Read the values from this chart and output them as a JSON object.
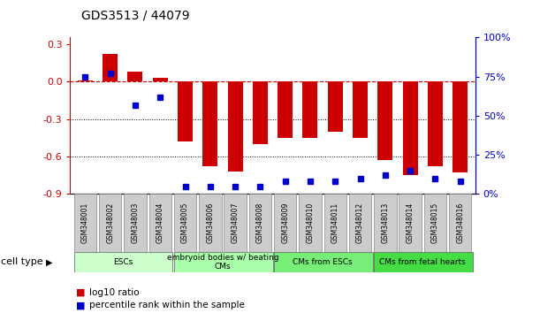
{
  "title": "GDS3513 / 44079",
  "samples": [
    "GSM348001",
    "GSM348002",
    "GSM348003",
    "GSM348004",
    "GSM348005",
    "GSM348006",
    "GSM348007",
    "GSM348008",
    "GSM348009",
    "GSM348010",
    "GSM348011",
    "GSM348012",
    "GSM348013",
    "GSM348014",
    "GSM348015",
    "GSM348016"
  ],
  "log10_ratio": [
    0.01,
    0.22,
    0.08,
    0.03,
    -0.48,
    -0.68,
    -0.72,
    -0.5,
    -0.45,
    -0.45,
    -0.4,
    -0.45,
    -0.63,
    -0.75,
    -0.68,
    -0.73
  ],
  "percentile_rank": [
    75,
    77,
    57,
    62,
    5,
    5,
    5,
    5,
    8,
    8,
    8,
    10,
    12,
    15,
    10,
    8
  ],
  "cell_types": [
    {
      "label": "ESCs",
      "start": 0,
      "end": 4,
      "color": "#ccffcc"
    },
    {
      "label": "embryoid bodies w/ beating\nCMs",
      "start": 4,
      "end": 8,
      "color": "#99ff99"
    },
    {
      "label": "CMs from ESCs",
      "start": 8,
      "end": 12,
      "color": "#66ee66"
    },
    {
      "label": "CMs from fetal hearts",
      "start": 12,
      "end": 16,
      "color": "#44dd44"
    }
  ],
  "ylim_left": [
    -0.9,
    0.35
  ],
  "ylim_right": [
    0,
    100
  ],
  "bar_color": "#cc0000",
  "dot_color": "#0000cc",
  "zero_line_color": "#cc0000",
  "grid_color": "#000000",
  "right_axis_color": "#0000cc",
  "right_ticks": [
    0,
    25,
    50,
    75,
    100
  ],
  "right_tick_labels": [
    "0%",
    "25%",
    "50%",
    "75%",
    "100%"
  ],
  "left_ticks": [
    -0.9,
    -0.6,
    -0.3,
    0.0,
    0.3
  ],
  "sample_box_color": "#cccccc",
  "sample_box_edge": "#888888"
}
